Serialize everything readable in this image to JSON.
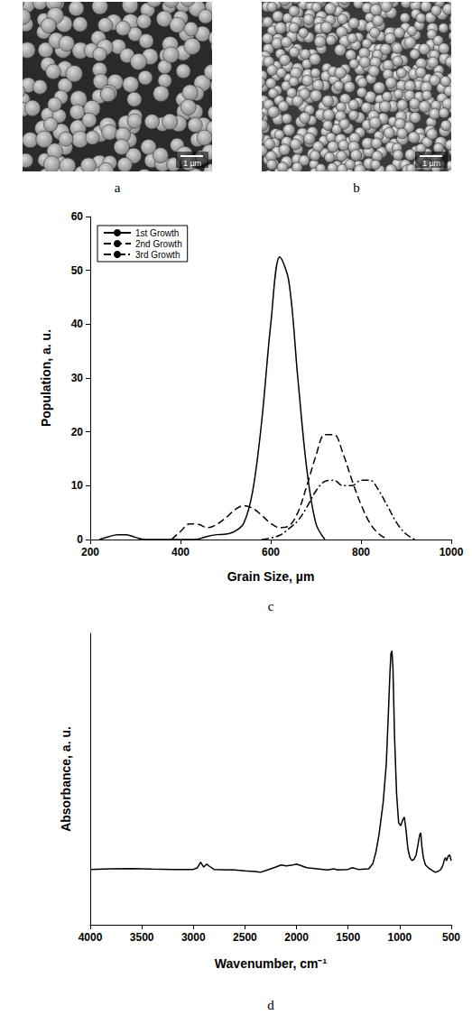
{
  "images": [
    {
      "panel_label": "a",
      "scale_bar": "1 µm"
    },
    {
      "panel_label": "b",
      "scale_bar": "1 µm"
    }
  ],
  "chart_data": [
    {
      "type": "line",
      "panel_label": "c",
      "xlabel": "Grain Size, µm",
      "ylabel": "Population, a. u.",
      "xlim": [
        200,
        1000
      ],
      "xticks": [
        200,
        400,
        600,
        800,
        1000
      ],
      "ylim": [
        0,
        60
      ],
      "yticks": [
        0,
        10,
        20,
        30,
        40,
        50,
        60
      ],
      "grid": false,
      "legend": "upper left",
      "x": [
        200,
        220,
        240,
        260,
        280,
        300,
        320,
        340,
        360,
        380,
        400,
        420,
        440,
        460,
        480,
        500,
        520,
        540,
        560,
        580,
        600,
        620,
        640,
        660,
        680,
        700,
        720,
        740,
        760,
        780,
        800,
        820,
        840,
        860,
        880,
        900,
        920,
        940,
        960,
        980,
        1000
      ],
      "series": [
        {
          "name": "1st Growth",
          "color": "#000000",
          "line_style": "solid",
          "values": [
            null,
            0,
            0.5,
            0.9,
            0.9,
            0.4,
            0,
            0,
            0,
            0,
            0,
            0,
            0.1,
            0.6,
            0.9,
            1.0,
            1.5,
            3,
            9,
            22,
            40,
            52.5,
            48,
            30,
            13,
            3,
            0,
            null,
            null,
            null,
            null,
            null,
            null,
            null,
            null,
            null,
            null,
            null,
            null,
            null,
            null
          ]
        },
        {
          "name": "2nd Growth",
          "color": "#000000",
          "line_style": "dashed",
          "values": [
            null,
            null,
            null,
            null,
            null,
            null,
            null,
            null,
            null,
            0,
            1.5,
            2.9,
            2.8,
            2.2,
            2.8,
            4,
            5.5,
            6.3,
            5.8,
            4.5,
            3,
            2.2,
            2.5,
            5,
            10,
            15.5,
            19.5,
            19.5,
            16,
            11,
            6.5,
            3,
            1,
            0,
            null,
            null,
            null,
            null,
            null,
            null,
            null
          ]
        },
        {
          "name": "3rd Growth",
          "color": "#000000",
          "line_style": "dashdot",
          "values": [
            null,
            null,
            null,
            null,
            null,
            null,
            null,
            null,
            null,
            null,
            null,
            null,
            null,
            null,
            null,
            null,
            null,
            null,
            null,
            0,
            0.3,
            0.8,
            2,
            3.5,
            6,
            9,
            10.8,
            11,
            10,
            10,
            11,
            11,
            9,
            6,
            3,
            1,
            0,
            null,
            null,
            null,
            null
          ]
        }
      ]
    },
    {
      "type": "line",
      "panel_label": "d",
      "xlabel": "Wavenumber, cm⁻¹",
      "ylabel": "Absorbance, a. u.",
      "xlim": [
        4000,
        500
      ],
      "xticks": [
        4000,
        3500,
        3000,
        2500,
        2000,
        1500,
        1000,
        500
      ],
      "ylim": [
        0,
        100
      ],
      "grid": false,
      "tick_labels": "x",
      "color": "#000000",
      "line_style": "solid",
      "x": [
        4000,
        3800,
        3600,
        3400,
        3200,
        3000,
        2960,
        2930,
        2900,
        2870,
        2850,
        2800,
        2600,
        2500,
        2400,
        2350,
        2300,
        2200,
        2150,
        2100,
        2050,
        2000,
        1950,
        1900,
        1800,
        1700,
        1640,
        1600,
        1500,
        1460,
        1400,
        1300,
        1260,
        1230,
        1200,
        1160,
        1130,
        1110,
        1095,
        1085,
        1075,
        1065,
        1050,
        1030,
        1010,
        990,
        970,
        955,
        940,
        920,
        900,
        880,
        860,
        840,
        820,
        805,
        795,
        785,
        770,
        750,
        720,
        700,
        680,
        650,
        620,
        600,
        580,
        565,
        555,
        545,
        530,
        515,
        500
      ],
      "values": [
        19,
        19.2,
        19.3,
        19.1,
        19,
        19,
        19.6,
        21.5,
        19.8,
        20.8,
        20.2,
        19,
        18.8,
        18.5,
        18.3,
        18,
        18.6,
        19.8,
        20.5,
        20.2,
        20.4,
        20.8,
        20.2,
        19.6,
        19.2,
        18.8,
        19.2,
        18.8,
        19,
        19.6,
        19,
        19.2,
        21,
        25,
        31,
        42,
        55,
        72,
        86,
        93,
        94,
        88,
        65,
        45,
        35,
        34,
        36,
        37,
        33,
        26,
        23,
        22,
        22.5,
        24,
        28,
        31,
        31.5,
        27,
        23,
        20.5,
        19.5,
        19,
        18.5,
        18,
        18.5,
        19,
        20.5,
        22.5,
        23,
        22,
        23.5,
        24,
        22
      ]
    }
  ]
}
